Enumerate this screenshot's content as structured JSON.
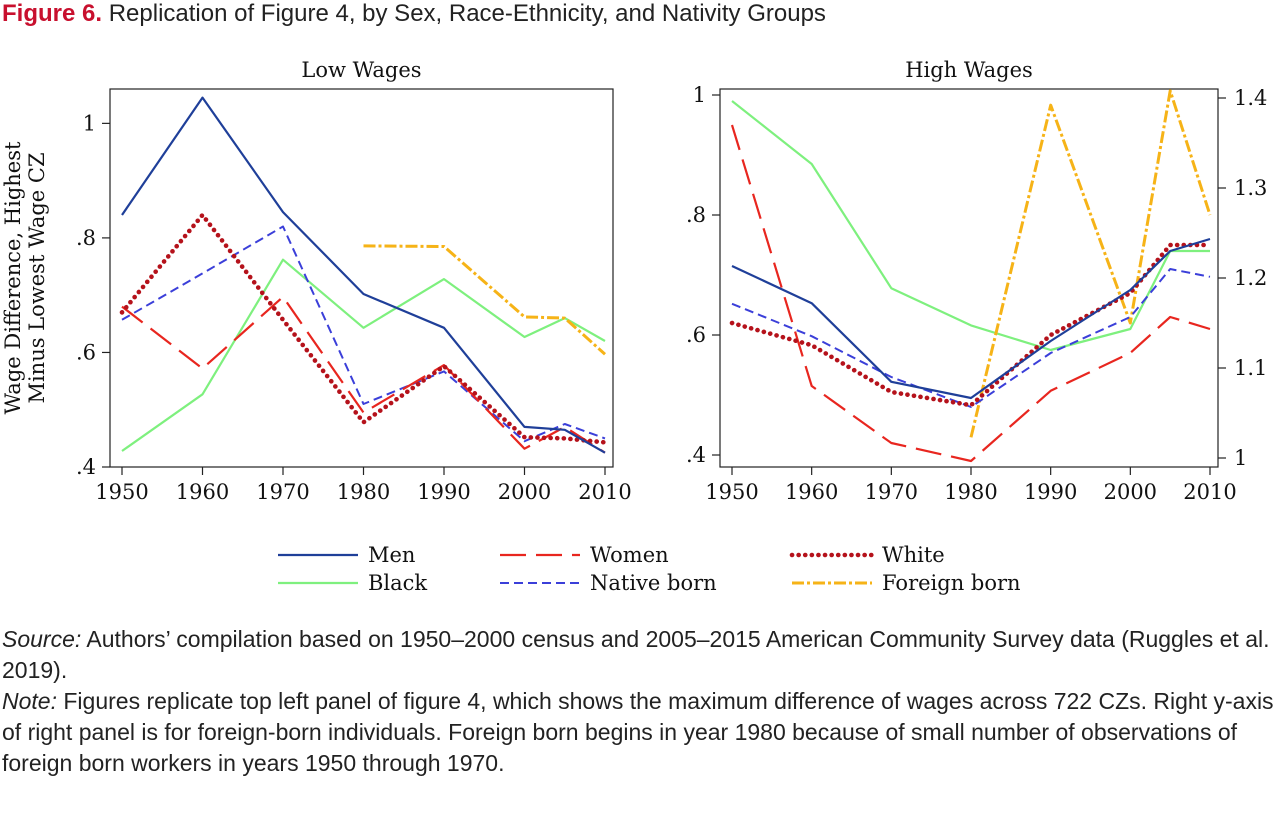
{
  "figure": {
    "number": "Figure 6.",
    "title": "Replication of Figure 4, by Sex, Race-Ethnicity, and Nativity Groups"
  },
  "chart_data": [
    {
      "type": "line",
      "title": "Low Wages",
      "ylabel": [
        "Wage Difference, Highest",
        "Minus Lowest Wage CZ"
      ],
      "xlim": [
        1950,
        2010
      ],
      "ylim": [
        0.4,
        1.06
      ],
      "xticks": [
        1950,
        1960,
        1970,
        1980,
        1990,
        2000,
        2010
      ],
      "xtick_labels": [
        "1950",
        "1960",
        "1970",
        "1980",
        "1990",
        "2000",
        "2010"
      ],
      "yticks": [
        0.4,
        0.6,
        0.8,
        1.0
      ],
      "ytick_labels": [
        ".4",
        ".6",
        ".8",
        "1"
      ],
      "grid": false,
      "series": [
        {
          "key": "men",
          "x": [
            1950,
            1960,
            1970,
            1980,
            1990,
            2000,
            2005,
            2010
          ],
          "y": [
            0.84,
            1.045,
            0.845,
            0.702,
            0.643,
            0.47,
            0.465,
            0.425
          ]
        },
        {
          "key": "women",
          "x": [
            1950,
            1960,
            1970,
            1980,
            1990,
            2000,
            2005,
            2010
          ],
          "y": [
            0.68,
            0.572,
            0.697,
            0.495,
            0.578,
            0.432,
            0.47,
            0.425
          ]
        },
        {
          "key": "white",
          "x": [
            1950,
            1960,
            1970,
            1980,
            1990,
            2000,
            2005,
            2010
          ],
          "y": [
            0.67,
            0.84,
            0.657,
            0.478,
            0.576,
            0.452,
            0.45,
            0.443
          ]
        },
        {
          "key": "black",
          "x": [
            1950,
            1960,
            1970,
            1980,
            1990,
            2000,
            2005,
            2010
          ],
          "y": [
            0.428,
            0.527,
            0.762,
            0.643,
            0.728,
            0.627,
            0.66,
            0.62
          ]
        },
        {
          "key": "native",
          "x": [
            1950,
            1960,
            1970,
            1980,
            1990,
            2000,
            2005,
            2010
          ],
          "y": [
            0.657,
            0.738,
            0.82,
            0.51,
            0.567,
            0.445,
            0.475,
            0.45
          ]
        },
        {
          "key": "foreign",
          "x": [
            1980,
            1990,
            2000,
            2005,
            2010
          ],
          "y": [
            0.786,
            0.785,
            0.662,
            0.66,
            0.597
          ]
        }
      ]
    },
    {
      "type": "line",
      "title": "High Wages",
      "xlim": [
        1950,
        2010
      ],
      "ylim": [
        0.38,
        1.01
      ],
      "y2lim": [
        0.99,
        1.41
      ],
      "xticks": [
        1950,
        1960,
        1970,
        1980,
        1990,
        2000,
        2010
      ],
      "xtick_labels": [
        "1950",
        "1960",
        "1970",
        "1980",
        "1990",
        "2000",
        "2010"
      ],
      "yticks": [
        0.4,
        0.6,
        0.8,
        1.0
      ],
      "ytick_labels": [
        ".4",
        ".6",
        ".8",
        "1"
      ],
      "y2ticks": [
        1.0,
        1.1,
        1.2,
        1.3,
        1.4
      ],
      "y2tick_labels": [
        "1",
        "1.1",
        "1.2",
        "1.3",
        "1.4"
      ],
      "grid": false,
      "series": [
        {
          "key": "men",
          "x": [
            1950,
            1960,
            1970,
            1980,
            1990,
            2000,
            2005,
            2010
          ],
          "y": [
            0.715,
            0.653,
            0.522,
            0.495,
            0.59,
            0.675,
            0.74,
            0.76
          ]
        },
        {
          "key": "women",
          "x": [
            1950,
            1960,
            1970,
            1980,
            1990,
            2000,
            2005,
            2010
          ],
          "y": [
            0.95,
            0.515,
            0.42,
            0.39,
            0.507,
            0.57,
            0.63,
            0.61
          ]
        },
        {
          "key": "white",
          "x": [
            1950,
            1960,
            1970,
            1980,
            1990,
            2000,
            2005,
            2010
          ],
          "y": [
            0.62,
            0.583,
            0.505,
            0.483,
            0.6,
            0.67,
            0.75,
            0.75
          ]
        },
        {
          "key": "black",
          "x": [
            1950,
            1960,
            1970,
            1980,
            1990,
            2000,
            2005,
            2010
          ],
          "y": [
            0.99,
            0.885,
            0.678,
            0.616,
            0.575,
            0.61,
            0.74,
            0.74
          ]
        },
        {
          "key": "native",
          "x": [
            1950,
            1960,
            1970,
            1980,
            1990,
            2000,
            2005,
            2010
          ],
          "y": [
            0.652,
            0.598,
            0.53,
            0.48,
            0.57,
            0.63,
            0.71,
            0.697
          ]
        },
        {
          "key": "foreign",
          "axis": "right",
          "x": [
            1980,
            1990,
            2000,
            2005,
            2010
          ],
          "y": [
            1.023,
            1.392,
            1.15,
            1.408,
            1.27
          ]
        }
      ]
    }
  ],
  "legend": {
    "position": "bottom",
    "items": [
      {
        "key": "men",
        "label": "Men",
        "color": "#1f3f99",
        "dash": "",
        "width": 2.2,
        "cap": "butt"
      },
      {
        "key": "women",
        "label": "Women",
        "color": "#e8261f",
        "dash": "26 10",
        "width": 2.2,
        "cap": "butt"
      },
      {
        "key": "white",
        "label": "White",
        "color": "#b5121b",
        "dash": "0.1 6.5",
        "width": 4.6,
        "cap": "round"
      },
      {
        "key": "black",
        "label": "Black",
        "color": "#7ef07e",
        "dash": "",
        "width": 2.2,
        "cap": "butt"
      },
      {
        "key": "native",
        "label": "Native born",
        "color": "#3b3fd9",
        "dash": "9 5",
        "width": 2.0,
        "cap": "butt"
      },
      {
        "key": "foreign",
        "label": "Foreign born",
        "color": "#f6b317",
        "dash": "12 3 3 3",
        "width": 3.0,
        "cap": "butt"
      }
    ]
  },
  "caption": {
    "source_label": "Source:",
    "source_text": "Authors’ compilation based on 1950–2000 census and 2005–2015 American Community Survey data (Ruggles et al. 2019).",
    "note_label": "Note:",
    "note_text": "Figures replicate top left panel of figure 4, which shows the maximum difference of wages across 722 CZs. Right y-axis of right panel is for foreign-born individuals. Foreign born begins in year 1980 because of small number of observations of foreign born workers in years 1950 through 1970."
  }
}
